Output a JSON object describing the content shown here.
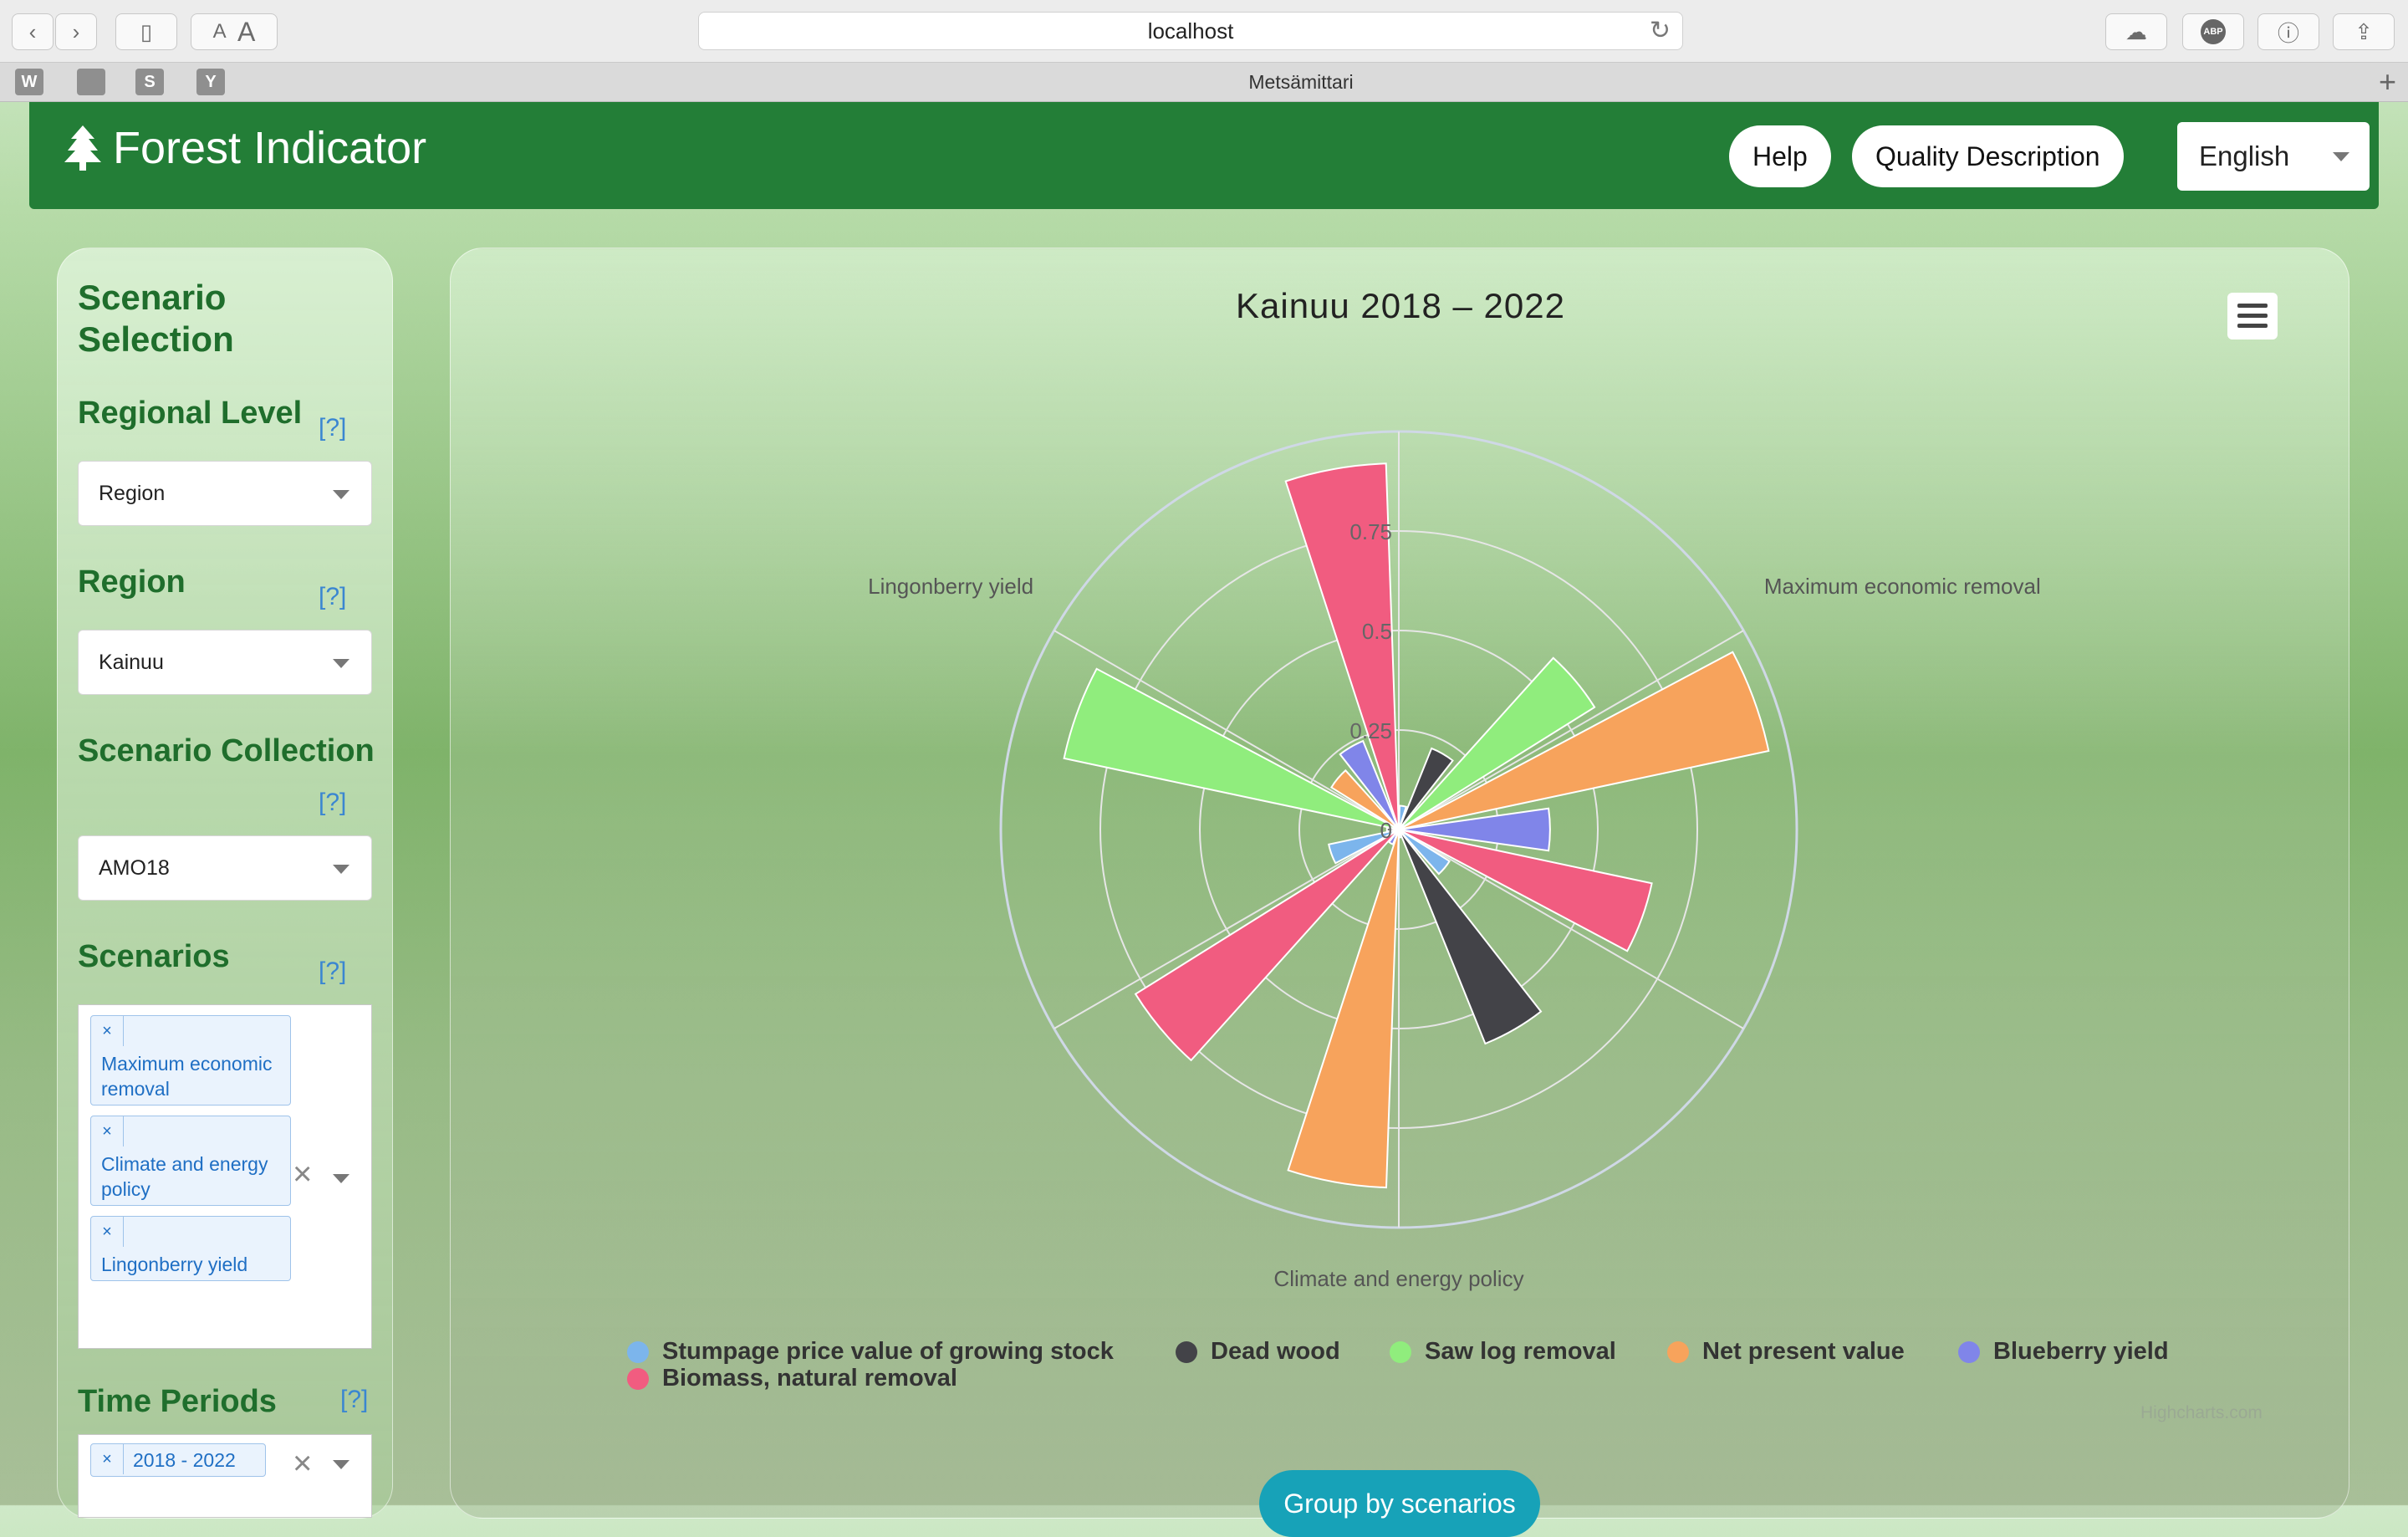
{
  "browser": {
    "url": "localhost",
    "tab_title": "Metsämittari",
    "favicons": [
      "W",
      "",
      "S",
      "Y"
    ]
  },
  "header": {
    "brand": "Forest Indicator",
    "help_label": "Help",
    "quality_label": "Quality Description",
    "language": "English"
  },
  "sidebar": {
    "title": "Scenario Selection",
    "help_mark": "[?]",
    "regional_level": {
      "label": "Regional Level",
      "value": "Region"
    },
    "region": {
      "label": "Region",
      "value": "Kainuu"
    },
    "collection": {
      "label": "Scenario Collection",
      "value": "AMO18"
    },
    "scenarios": {
      "label": "Scenarios",
      "tags": [
        "Maximum economic removal",
        "Climate and energy policy",
        "Lingonberry yield"
      ]
    },
    "time_periods": {
      "label": "Time Periods",
      "tags": [
        "2018 - 2022"
      ]
    }
  },
  "chart_data": {
    "type": "polar-column",
    "title": "Kainuu 2018 – 2022",
    "categories": [
      "Maximum economic removal",
      "Climate and energy policy",
      "Lingonberry yield"
    ],
    "y_ticks": [
      "0",
      "0.25",
      "0.5",
      "0.75"
    ],
    "ylim": [
      0,
      1
    ],
    "series": [
      {
        "name": "Stumpage price value of growing stock",
        "color": "#7cb5ec",
        "values": [
          0.06,
          0.15,
          0.18
        ]
      },
      {
        "name": "Dead wood",
        "color": "#434348",
        "values": [
          0.22,
          0.58,
          0.03
        ]
      },
      {
        "name": "Saw log removal",
        "color": "#90ed7d",
        "values": [
          0.58,
          0.02,
          0.86
        ]
      },
      {
        "name": "Net present value",
        "color": "#f7a35c",
        "values": [
          0.95,
          0.9,
          0.2
        ]
      },
      {
        "name": "Blueberry yield",
        "color": "#8085e9",
        "values": [
          0.38,
          0.04,
          0.24
        ]
      },
      {
        "name": "Biomass, natural removal",
        "color": "#f15c80",
        "values": [
          0.65,
          0.78,
          0.92
        ]
      }
    ],
    "legend_position": "bottom",
    "credits": "Highcharts.com"
  },
  "group_button": "Group by scenarios"
}
